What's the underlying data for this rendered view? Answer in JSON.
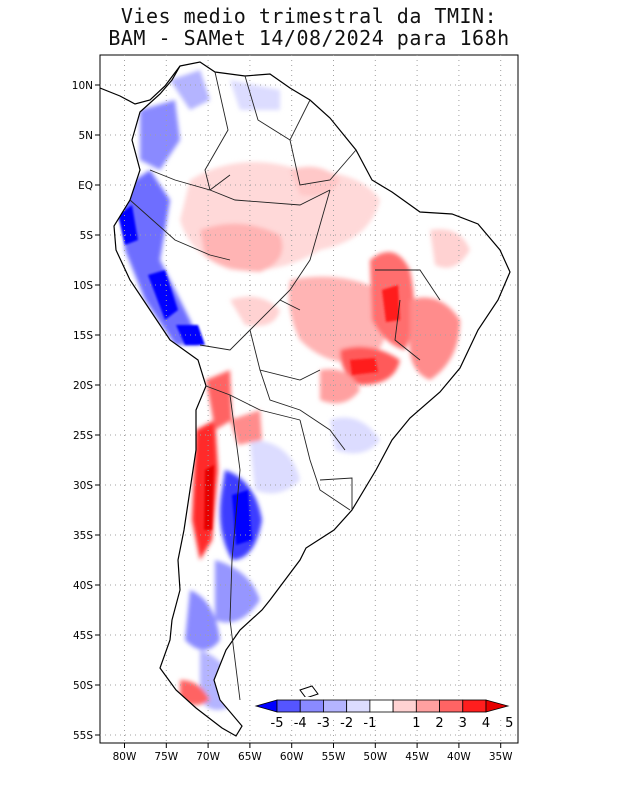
{
  "title": {
    "line1": "Vies medio trimestral da TMIN:",
    "line2": "BAM - SAMet 14/08/2024  para 168h"
  },
  "axes": {
    "lon_labels": [
      "80W",
      "75W",
      "70W",
      "65W",
      "60W",
      "55W",
      "50W",
      "45W",
      "40W",
      "35W"
    ],
    "lat_labels": [
      "10N",
      "5N",
      "EQ",
      "5S",
      "10S",
      "15S",
      "20S",
      "25S",
      "30S",
      "35S",
      "40S",
      "45S",
      "50S",
      "55S"
    ],
    "lon_range": [
      -83,
      -34
    ],
    "lat_range": [
      13,
      -56
    ],
    "grid": "dotted"
  },
  "colorbar": {
    "labels": [
      "-5",
      "-4",
      "-3",
      "-2",
      "-1",
      "1",
      "2",
      "3",
      "4",
      "5"
    ],
    "colors": [
      "#0000ff",
      "#5555ff",
      "#8a8aff",
      "#b4b4ff",
      "#dcdcff",
      "#ffffff",
      "#ffd2d2",
      "#ffa0a0",
      "#ff6464",
      "#ff1e1e",
      "#e60000"
    ]
  },
  "colors": {
    "coast": "#000000",
    "border": "#222222"
  }
}
